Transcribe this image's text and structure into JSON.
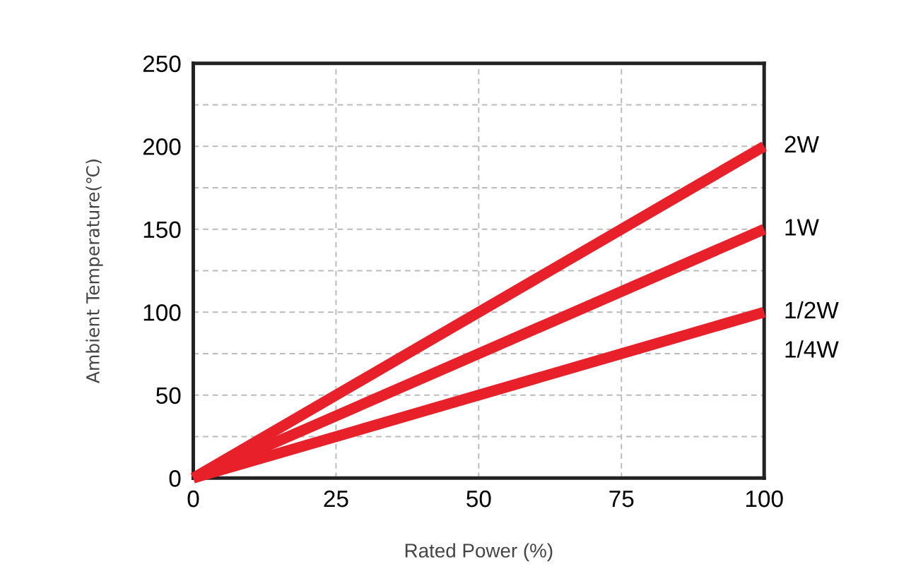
{
  "chart_data": {
    "type": "line",
    "xlabel": "Rated Power (%)",
    "ylabel": "Ambient Temperature(℃)",
    "x": [
      0,
      100
    ],
    "series": [
      {
        "name": "2W",
        "color": "#e8202a",
        "values": [
          0,
          200
        ]
      },
      {
        "name": "1W",
        "color": "#e8202a",
        "values": [
          0,
          150
        ]
      },
      {
        "name": "1/2W",
        "color": "#e8202a",
        "values": [
          0,
          100
        ]
      }
    ],
    "annotations": [
      "1/4W"
    ],
    "xlim": [
      0,
      100
    ],
    "xticks": [
      0,
      25,
      50,
      75,
      100
    ],
    "ylim": [
      0,
      250
    ],
    "yticks": [
      0,
      {
        "value": 25,
        "label": null
      },
      50,
      {
        "value": 75,
        "label": null
      },
      100,
      {
        "value": 125,
        "label": null
      },
      150,
      {
        "value": 175,
        "label": null
      },
      200,
      {
        "value": 225,
        "label": null
      },
      250
    ],
    "grid": true,
    "legend": false,
    "marker": "none",
    "line_style": "solid"
  }
}
